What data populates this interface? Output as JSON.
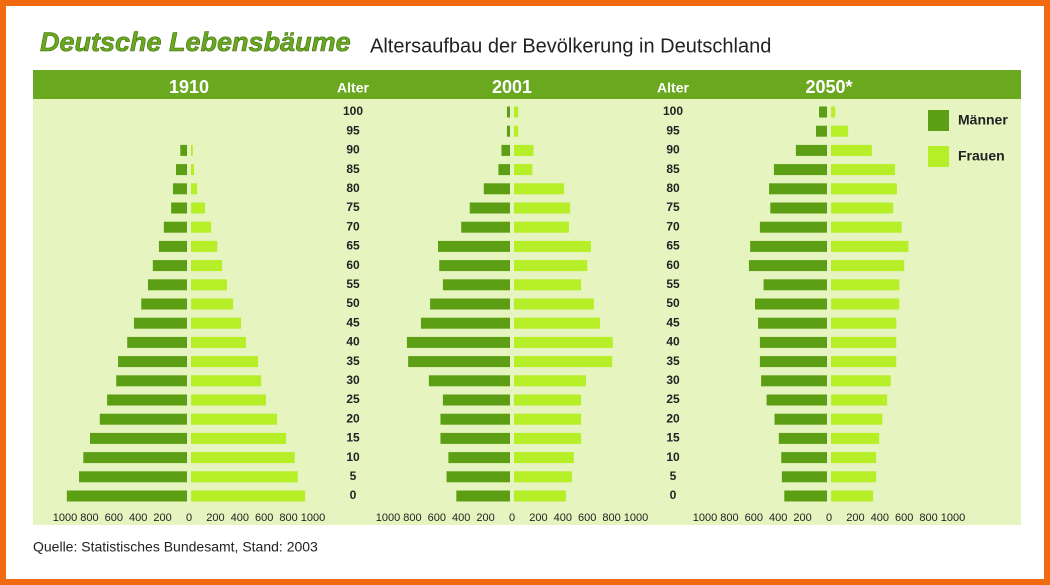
{
  "title": "Deutsche Lebensbäume",
  "subtitle": "Altersaufbau der Bevölkerung in Deutschland",
  "source": "Quelle: Statistisches Bundesamt, Stand: 2003",
  "age_axis": {
    "label": "Alter",
    "categories": [
      100,
      95,
      90,
      85,
      80,
      75,
      70,
      65,
      60,
      55,
      50,
      45,
      40,
      35,
      30,
      25,
      20,
      15,
      10,
      5,
      0
    ]
  },
  "legend": [
    {
      "name": "Männer",
      "color": "#5d9f14"
    },
    {
      "name": "Frauen",
      "color": "#b6ee28"
    }
  ],
  "chart_data": [
    {
      "type": "bar",
      "title": "1910",
      "xlim": [
        0,
        1000
      ],
      "xticks": [
        0,
        200,
        400,
        600,
        800,
        1000
      ],
      "series": [
        {
          "values": [
            0,
            0,
            55,
            90,
            115,
            130,
            190,
            230,
            280,
            320,
            375,
            435,
            490,
            565,
            580,
            655,
            715,
            795,
            850,
            885,
            985
          ]
        },
        {
          "values": [
            0,
            0,
            15,
            25,
            50,
            115,
            165,
            215,
            255,
            295,
            345,
            410,
            450,
            550,
            575,
            615,
            705,
            780,
            850,
            875,
            935
          ]
        }
      ]
    },
    {
      "type": "bar",
      "title": "2001",
      "xlim": [
        0,
        1000
      ],
      "xticks": [
        0,
        200,
        400,
        600,
        800,
        1000
      ],
      "series": [
        {
          "values": [
            25,
            25,
            70,
            95,
            215,
            330,
            400,
            590,
            580,
            550,
            655,
            730,
            845,
            835,
            665,
            550,
            570,
            570,
            505,
            520,
            440
          ]
        },
        {
          "values": [
            35,
            35,
            160,
            150,
            410,
            460,
            450,
            630,
            600,
            550,
            655,
            705,
            810,
            805,
            590,
            550,
            550,
            550,
            490,
            475,
            425
          ]
        }
      ]
    },
    {
      "type": "bar",
      "title": "2050*",
      "xlim": [
        0,
        1000
      ],
      "xticks": [
        0,
        200,
        400,
        600,
        800,
        1000
      ],
      "series": [
        {
          "values": [
            65,
            90,
            255,
            435,
            475,
            465,
            550,
            630,
            640,
            520,
            590,
            565,
            550,
            550,
            540,
            495,
            430,
            395,
            375,
            370,
            350
          ]
        },
        {
          "values": [
            35,
            140,
            335,
            525,
            540,
            510,
            580,
            635,
            600,
            560,
            560,
            535,
            535,
            535,
            490,
            460,
            420,
            395,
            370,
            370,
            345
          ]
        }
      ]
    }
  ]
}
